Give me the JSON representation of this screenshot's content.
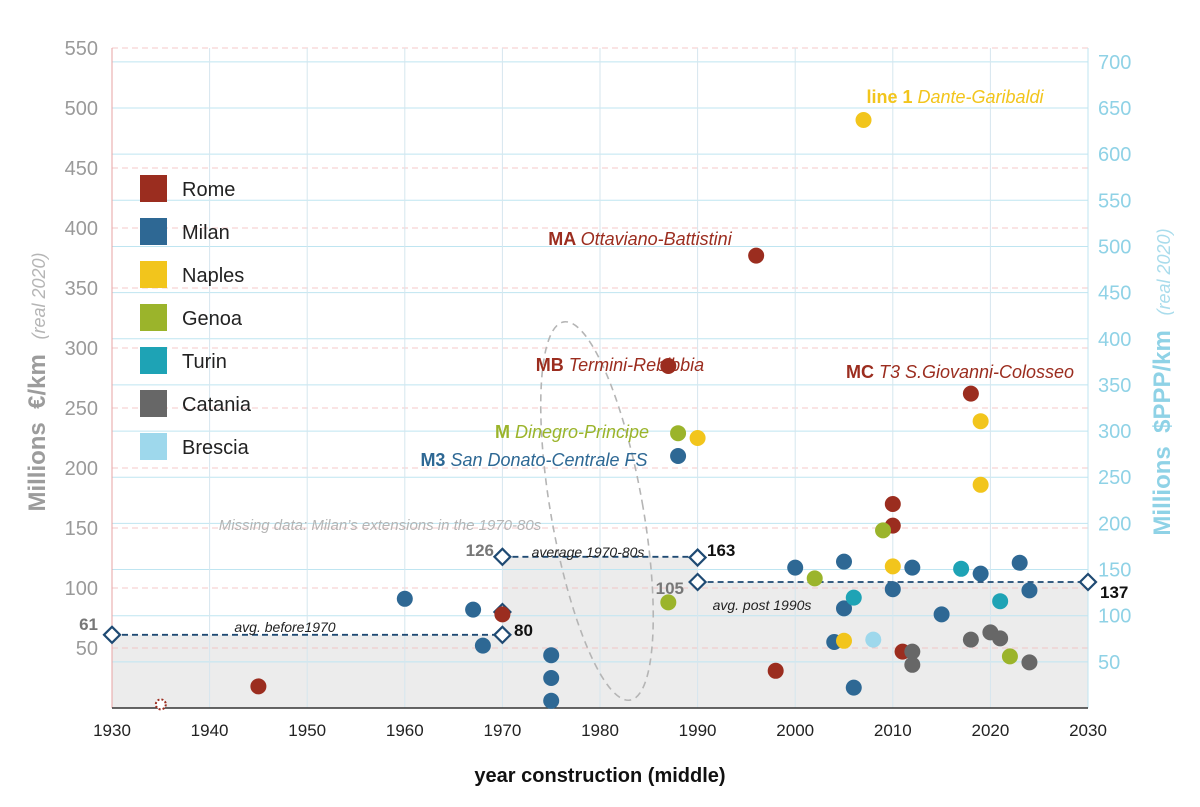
{
  "chart_data": {
    "type": "scatter",
    "xlabel": "year construction (middle)",
    "ylabel_left_main": "Millions  €/km",
    "ylabel_left_sub": "(real 2020)",
    "ylabel_right_main": "Millions  $PPP/km",
    "ylabel_right_sub": "(real 2020)",
    "xlim": [
      1930,
      2030
    ],
    "ylim": [
      0,
      550
    ],
    "ylim_right": [
      0,
      715
    ],
    "x_ticks": [
      1930,
      1940,
      1950,
      1960,
      1970,
      1980,
      1990,
      2000,
      2010,
      2020,
      2030
    ],
    "y_ticks": [
      50,
      100,
      150,
      200,
      250,
      300,
      350,
      400,
      450,
      500,
      550
    ],
    "y_right_ticks": [
      50,
      100,
      150,
      200,
      250,
      300,
      350,
      400,
      450,
      500,
      550,
      600,
      650,
      700
    ],
    "grid": true,
    "legend_position": "top-left",
    "series": [
      {
        "name": "Rome",
        "color": "#9b2d1f",
        "points": [
          [
            1935,
            3
          ],
          [
            1945,
            18
          ],
          [
            1970,
            78
          ],
          [
            1987,
            285
          ],
          [
            1996,
            377
          ],
          [
            1998,
            31
          ],
          [
            2010,
            170
          ],
          [
            2010,
            152
          ],
          [
            2011,
            47
          ],
          [
            2018,
            262
          ]
        ]
      },
      {
        "name": "Milan",
        "color": "#2e6894",
        "points": [
          [
            1960,
            91
          ],
          [
            1967,
            82
          ],
          [
            1968,
            52
          ],
          [
            1975,
            44
          ],
          [
            1975,
            25
          ],
          [
            1975,
            6
          ],
          [
            1988,
            210
          ],
          [
            2000,
            117
          ],
          [
            2004,
            55
          ],
          [
            2005,
            122
          ],
          [
            2005,
            83
          ],
          [
            2006,
            17
          ],
          [
            2010,
            99
          ],
          [
            2012,
            117
          ],
          [
            2015,
            78
          ],
          [
            2019,
            112
          ],
          [
            2023,
            121
          ],
          [
            2024,
            98
          ]
        ]
      },
      {
        "name": "Naples",
        "color": "#f2c51c",
        "points": [
          [
            1990,
            225
          ],
          [
            2005,
            56
          ],
          [
            2007,
            490
          ],
          [
            2010,
            118
          ],
          [
            2019,
            239
          ],
          [
            2019,
            186
          ]
        ]
      },
      {
        "name": "Genoa",
        "color": "#9bb42b",
        "points": [
          [
            1987,
            88
          ],
          [
            1988,
            229
          ],
          [
            2002,
            108
          ],
          [
            2009,
            148
          ],
          [
            2022,
            43
          ]
        ]
      },
      {
        "name": "Turin",
        "color": "#1ea3b5",
        "points": [
          [
            2006,
            92
          ],
          [
            2017,
            116
          ],
          [
            2021,
            89
          ]
        ]
      },
      {
        "name": "Catania",
        "color": "#676767",
        "points": [
          [
            2012,
            47
          ],
          [
            2012,
            36
          ],
          [
            2018,
            57
          ],
          [
            2020,
            63
          ],
          [
            2021,
            58
          ],
          [
            2024,
            38
          ]
        ]
      },
      {
        "name": "Brescia",
        "color": "#9ed8ec",
        "points": [
          [
            2008,
            57
          ]
        ]
      }
    ],
    "annotations": [
      {
        "bold": "line 1",
        "italic": "Dante-Garibaldi",
        "series": "Naples",
        "x": 2007,
        "y": 510
      },
      {
        "bold": "MA",
        "italic": "Ottaviano-Battistini",
        "series": "Rome",
        "x": 1996,
        "y": 392
      },
      {
        "bold": "MB",
        "italic": "Termini-Rebibbia",
        "series": "Rome",
        "x": 1987,
        "y": 283
      },
      {
        "bold": "MC",
        "italic": "T3 S.Giovanni-Colosseo",
        "series": "Rome",
        "x": 2018,
        "y": 282
      },
      {
        "bold": "M",
        "italic": "Dinegro-Principe",
        "series": "Genoa",
        "x": 1988,
        "y": 228
      },
      {
        "bold": "M3",
        "italic": "San Donato-Centrale FS",
        "series": "Milan",
        "x": 1988,
        "y": 209
      }
    ],
    "missing_data_note": "Missing data: Milan’s extensions in the 1970-80s",
    "averages": [
      {
        "label": "avg. before1970",
        "x_start": 1930,
        "x_end": 1970,
        "y": 61,
        "start_value": "61",
        "end_value": "80"
      },
      {
        "label": "average 1970-80s",
        "x_start": 1970,
        "x_end": 1990,
        "y": 126,
        "start_value": "126",
        "end_value": "163"
      },
      {
        "label": "avg. post 1990s",
        "x_start": 1990,
        "x_end": 2030,
        "y": 105,
        "start_value": "105",
        "end_value": "137"
      }
    ]
  }
}
